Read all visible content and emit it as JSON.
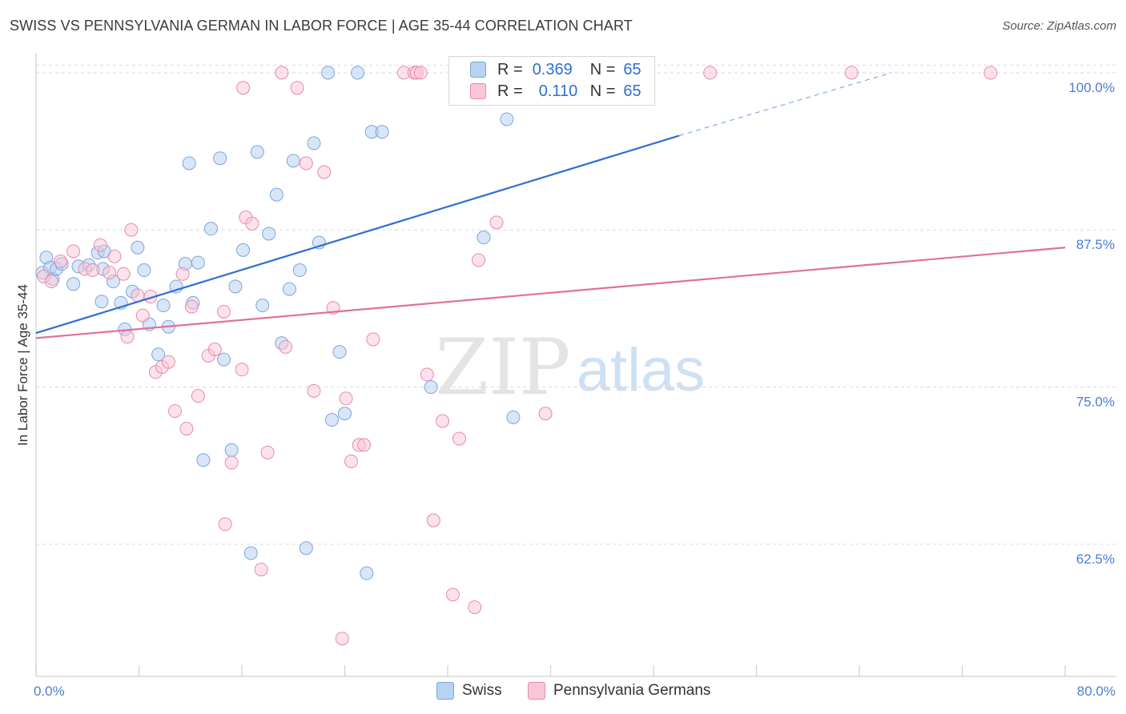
{
  "header": {
    "title": "SWISS VS PENNSYLVANIA GERMAN IN LABOR FORCE | AGE 35-44 CORRELATION CHART",
    "source": "Source: ZipAtlas.com"
  },
  "watermark": {
    "zip": "ZIP",
    "atlas": "atlas"
  },
  "legend_box": {
    "rows": [
      {
        "r_label": "R =",
        "r_value": "0.369",
        "n_label": "N =",
        "n_value": "65"
      },
      {
        "r_label": "R =",
        "r_value": "0.110",
        "n_label": "N =",
        "n_value": "65"
      }
    ]
  },
  "bottom_legend": {
    "items": [
      "Swiss",
      "Pennsylvania Germans"
    ]
  },
  "colors": {
    "swiss_fill": "#b8d2f2",
    "swiss_stroke": "#7aa6dc",
    "swiss_line": "#2f6fd1",
    "pg_fill": "#f9c6d6",
    "pg_stroke": "#e88aab",
    "pg_line": "#e0709a",
    "tick_label": "#4a7fd0",
    "grid": "#d9d9d9"
  },
  "chart_data": {
    "type": "scatter",
    "title": "SWISS VS PENNSYLVANIA GERMAN IN LABOR FORCE | AGE 35-44 CORRELATION CHART",
    "xlabel": "",
    "ylabel": "In Labor Force | Age 35-44",
    "xlim": [
      0,
      80
    ],
    "ylim": [
      52,
      101.2
    ],
    "x_tick_labels": [
      "0.0%",
      "80.0%"
    ],
    "y_ticks": [
      62.5,
      75.0,
      87.5,
      100.0
    ],
    "y_tick_labels": [
      "62.5%",
      "75.0%",
      "87.5%",
      "100.0%"
    ],
    "grid": "horizontal-dashed",
    "legend_position": "top-center",
    "series": [
      {
        "name": "Swiss",
        "r": 0.369,
        "n": 65,
        "trend": {
          "x0": 0,
          "y0": 79.3,
          "x1": 50,
          "y1": 95.0,
          "dashed_to_x": 66.5,
          "dashed_to_y": 100.0
        },
        "points": [
          [
            0.5,
            84.1
          ],
          [
            0.8,
            85.3
          ],
          [
            1.1,
            84.5
          ],
          [
            1.3,
            83.6
          ],
          [
            1.6,
            84.4
          ],
          [
            2.0,
            84.8
          ],
          [
            2.9,
            83.2
          ],
          [
            3.3,
            84.6
          ],
          [
            4.1,
            84.7
          ],
          [
            5.2,
            84.4
          ],
          [
            4.8,
            85.7
          ],
          [
            5.1,
            81.8
          ],
          [
            5.3,
            85.8
          ],
          [
            6.0,
            83.4
          ],
          [
            6.6,
            81.7
          ],
          [
            6.9,
            79.6
          ],
          [
            7.5,
            82.6
          ],
          [
            7.9,
            86.1
          ],
          [
            8.4,
            84.3
          ],
          [
            8.8,
            80.0
          ],
          [
            9.5,
            77.6
          ],
          [
            9.9,
            81.5
          ],
          [
            10.3,
            79.8
          ],
          [
            10.9,
            83.0
          ],
          [
            11.6,
            84.8
          ],
          [
            11.9,
            92.8
          ],
          [
            12.2,
            81.7
          ],
          [
            12.6,
            84.9
          ],
          [
            13.0,
            69.2
          ],
          [
            13.6,
            87.6
          ],
          [
            14.3,
            93.2
          ],
          [
            14.6,
            77.2
          ],
          [
            15.2,
            70.0
          ],
          [
            15.5,
            83.0
          ],
          [
            16.1,
            85.9
          ],
          [
            16.7,
            61.8
          ],
          [
            17.2,
            93.7
          ],
          [
            17.6,
            81.5
          ],
          [
            18.1,
            87.2
          ],
          [
            18.7,
            90.3
          ],
          [
            19.1,
            78.5
          ],
          [
            19.7,
            82.8
          ],
          [
            20.0,
            93.0
          ],
          [
            20.5,
            84.3
          ],
          [
            21.0,
            62.2
          ],
          [
            21.6,
            94.4
          ],
          [
            22.0,
            86.5
          ],
          [
            22.7,
            100.0
          ],
          [
            23.0,
            72.4
          ],
          [
            23.6,
            77.8
          ],
          [
            24.0,
            72.9
          ],
          [
            25.0,
            100.0
          ],
          [
            25.7,
            60.2
          ],
          [
            26.1,
            95.3
          ],
          [
            26.9,
            95.3
          ],
          [
            30.7,
            75.0
          ],
          [
            32.9,
            100.0
          ],
          [
            34.0,
            100.0
          ],
          [
            34.8,
            86.9
          ],
          [
            36.6,
            96.3
          ],
          [
            37.1,
            72.6
          ],
          [
            38.4,
            100.0
          ],
          [
            43.4,
            100.0
          ],
          [
            45.5,
            100.0
          ],
          [
            47.0,
            100.0
          ]
        ]
      },
      {
        "name": "Pennsylvania Germans",
        "r": 0.11,
        "n": 65,
        "trend": {
          "x0": 0,
          "y0": 78.9,
          "x1": 80,
          "y1": 86.1
        },
        "points": [
          [
            0.6,
            83.8
          ],
          [
            1.2,
            83.4
          ],
          [
            1.9,
            85.0
          ],
          [
            2.9,
            85.8
          ],
          [
            3.8,
            84.4
          ],
          [
            4.4,
            84.3
          ],
          [
            5.0,
            86.3
          ],
          [
            5.7,
            84.1
          ],
          [
            6.1,
            85.4
          ],
          [
            6.8,
            84.0
          ],
          [
            7.1,
            79.0
          ],
          [
            7.4,
            87.5
          ],
          [
            7.9,
            82.3
          ],
          [
            8.3,
            80.7
          ],
          [
            8.9,
            82.2
          ],
          [
            9.3,
            76.2
          ],
          [
            9.8,
            76.6
          ],
          [
            10.3,
            77.0
          ],
          [
            10.8,
            73.1
          ],
          [
            11.4,
            84.0
          ],
          [
            11.7,
            71.7
          ],
          [
            12.1,
            81.4
          ],
          [
            12.6,
            74.3
          ],
          [
            13.4,
            77.5
          ],
          [
            13.9,
            78.0
          ],
          [
            14.6,
            81.0
          ],
          [
            15.2,
            69.0
          ],
          [
            14.7,
            64.1
          ],
          [
            16.0,
            76.4
          ],
          [
            16.3,
            88.5
          ],
          [
            16.8,
            88.0
          ],
          [
            16.1,
            98.8
          ],
          [
            17.5,
            60.5
          ],
          [
            18.0,
            69.8
          ],
          [
            19.1,
            100.0
          ],
          [
            19.4,
            78.2
          ],
          [
            20.3,
            98.8
          ],
          [
            21.0,
            92.8
          ],
          [
            21.6,
            74.7
          ],
          [
            22.4,
            92.1
          ],
          [
            23.1,
            81.3
          ],
          [
            23.8,
            55.0
          ],
          [
            24.1,
            74.1
          ],
          [
            24.5,
            69.1
          ],
          [
            25.1,
            70.4
          ],
          [
            25.5,
            70.4
          ],
          [
            26.2,
            78.8
          ],
          [
            28.6,
            100.0
          ],
          [
            29.4,
            100.0
          ],
          [
            29.6,
            100.0
          ],
          [
            29.9,
            100.0
          ],
          [
            30.4,
            76.0
          ],
          [
            30.9,
            64.4
          ],
          [
            31.6,
            72.3
          ],
          [
            32.4,
            58.5
          ],
          [
            32.9,
            70.9
          ],
          [
            34.1,
            57.5
          ],
          [
            34.4,
            85.1
          ],
          [
            35.8,
            88.1
          ],
          [
            39.6,
            72.9
          ],
          [
            42.0,
            100.0
          ],
          [
            47.3,
            100.0
          ],
          [
            52.4,
            100.0
          ],
          [
            63.4,
            100.0
          ],
          [
            74.2,
            100.0
          ]
        ]
      }
    ]
  }
}
